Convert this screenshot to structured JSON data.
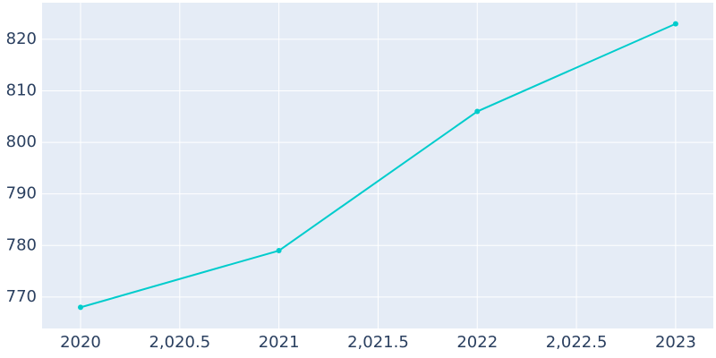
{
  "chart_data": {
    "type": "line",
    "x": [
      2020,
      2021,
      2022,
      2023
    ],
    "series": [
      {
        "color": "#00cccc",
        "values": [
          768,
          779,
          806,
          823
        ]
      }
    ],
    "xlim": [
      2019.806,
      2023.19
    ],
    "ylim": [
      763.9,
      827.1
    ],
    "xticks": [
      2020,
      {
        "value": 2020.5,
        "label": "2,020.5"
      },
      2021,
      {
        "value": 2021.5,
        "label": "2,021.5"
      },
      2022,
      {
        "value": 2022.5,
        "label": "2,022.5"
      },
      2023
    ],
    "yticks": [
      770,
      780,
      790,
      800,
      810,
      820
    ],
    "grid": true
  }
}
